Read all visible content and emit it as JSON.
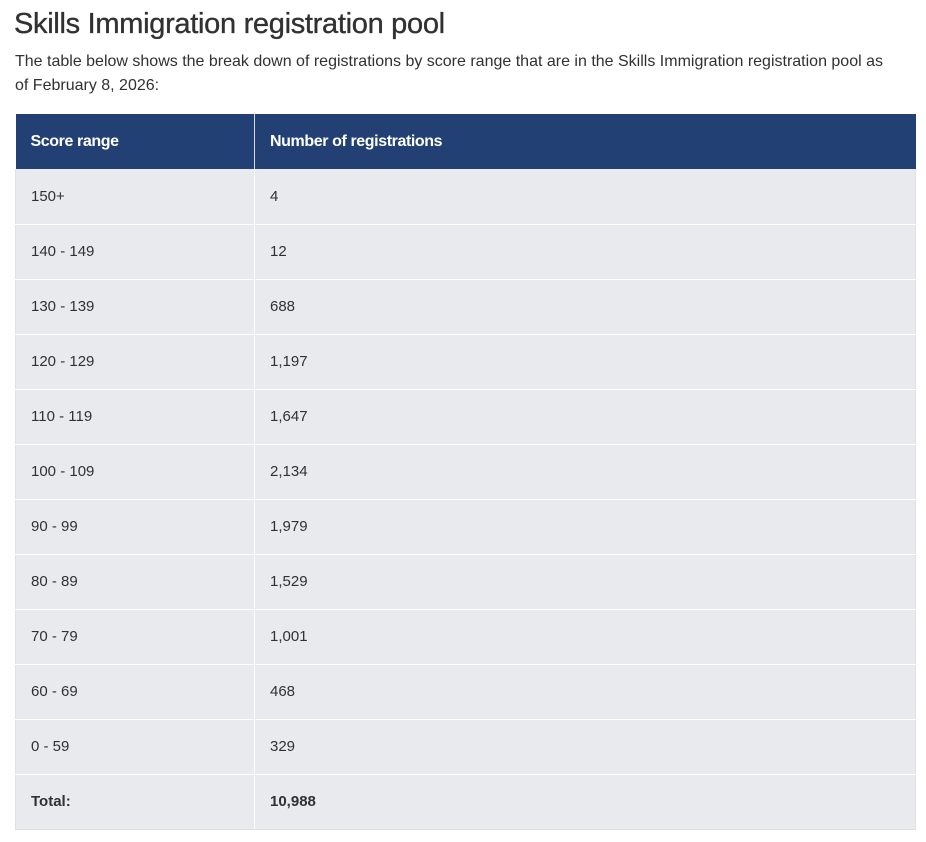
{
  "page": {
    "title": "Skills Immigration registration pool",
    "intro": "The table below shows the break down of registrations by score range that are in the Skills Immigration registration pool as of February 8, 2026:"
  },
  "table": {
    "headers": [
      "Score range",
      "Number of registrations"
    ],
    "rows": [
      {
        "range": "150+",
        "count": "4"
      },
      {
        "range": "140 - 149",
        "count": "12"
      },
      {
        "range": "130 - 139",
        "count": "688"
      },
      {
        "range": "120 - 129",
        "count": "1,197"
      },
      {
        "range": "110 - 119",
        "count": "1,647"
      },
      {
        "range": "100 - 109",
        "count": "2,134"
      },
      {
        "range": "90 - 99",
        "count": "1,979"
      },
      {
        "range": "80 - 89",
        "count": "1,529"
      },
      {
        "range": "70 - 79",
        "count": "1,001"
      },
      {
        "range": "60 - 69",
        "count": "468"
      },
      {
        "range": "0 - 59",
        "count": "329"
      }
    ],
    "total": {
      "label": "Total:",
      "count": "10,988"
    }
  },
  "colors": {
    "header_bg": "#234075",
    "row_bg": "#e9eaee",
    "text": "#313132"
  }
}
